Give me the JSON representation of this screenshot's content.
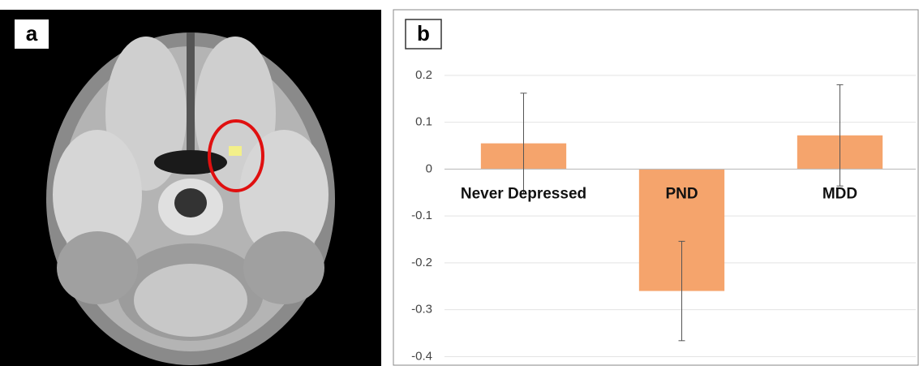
{
  "panel_labels": [
    "a",
    "b"
  ],
  "chart_data": {
    "type": "bar",
    "categories": [
      "Never Depressed",
      "PND",
      "MDD"
    ],
    "values": [
      0.055,
      -0.26,
      0.072
    ],
    "errors": [
      0.107,
      0.106,
      0.108
    ],
    "color": "#f5a46c",
    "ylim": [
      -0.42,
      0.34
    ],
    "yticks": [
      -0.4,
      -0.3,
      -0.2,
      -0.1,
      0,
      0.1,
      0.2
    ],
    "grid": true
  }
}
